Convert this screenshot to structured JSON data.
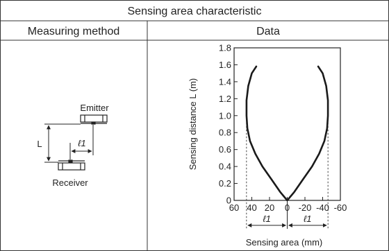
{
  "table": {
    "title": "Sensing area characteristic",
    "col_method": "Measuring method",
    "col_data": "Data"
  },
  "diagram": {
    "emitter_label": "Emitter",
    "receiver_label": "Receiver",
    "distance_label": "L",
    "offset_label": "ℓ1"
  },
  "chart_data": {
    "type": "line",
    "title": "",
    "xlabel": "Sensing area (mm)",
    "ylabel": "Sensing distance L (m)",
    "xlim": [
      60,
      -60
    ],
    "ylim": [
      0,
      1.8
    ],
    "x_ticks": [
      "60",
      "40",
      "20",
      "0",
      "-20",
      "-40",
      "-60"
    ],
    "x_tick_values": [
      60,
      40,
      20,
      0,
      -20,
      -40,
      -60
    ],
    "y_ticks": [
      "0",
      "0.2",
      "0.4",
      "0.6",
      "0.8",
      "1.0",
      "1.2",
      "1.4",
      "1.6",
      "1.8"
    ],
    "y_tick_values": [
      0,
      0.2,
      0.4,
      0.6,
      0.8,
      1.0,
      1.2,
      1.4,
      1.6,
      1.8
    ],
    "grid": false,
    "legend": "none",
    "series": [
      {
        "x": [
          35,
          40,
          44,
          46,
          46,
          45,
          42,
          36,
          28,
          18,
          8,
          0,
          -8,
          -18,
          -28,
          -36,
          -42,
          -45,
          -46,
          -46,
          -44,
          -40,
          -35
        ],
        "y": [
          1.58,
          1.5,
          1.35,
          1.18,
          1.0,
          0.85,
          0.7,
          0.55,
          0.4,
          0.25,
          0.1,
          0,
          0.1,
          0.25,
          0.4,
          0.55,
          0.7,
          0.85,
          1.0,
          1.18,
          1.35,
          1.5,
          1.58
        ]
      }
    ],
    "reference_lines_x": [
      46,
      -46
    ],
    "dimension_label": "ℓ1",
    "line_color": "#1a1a1a"
  }
}
